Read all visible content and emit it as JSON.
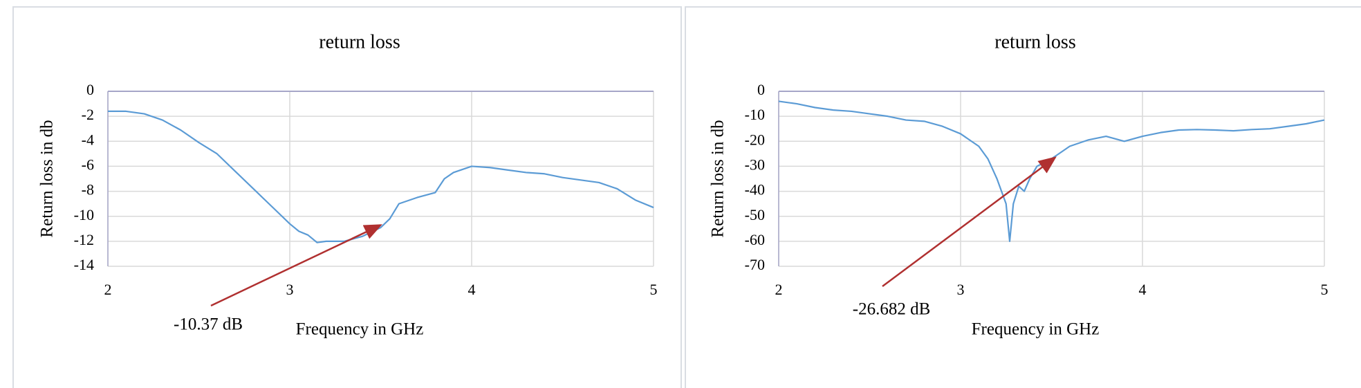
{
  "chart_data": [
    {
      "type": "line",
      "title": "return loss",
      "xlabel": "Frequency in GHz",
      "ylabel": "Return loss in db",
      "color": "#5b9bd5",
      "grid": true,
      "xlim": [
        2,
        5
      ],
      "xticks": [
        2,
        3,
        4,
        5
      ],
      "ylim": [
        -14,
        0
      ],
      "yticks": [
        0,
        -2,
        -4,
        -6,
        -8,
        -10,
        -12,
        -14
      ],
      "x": [
        2.0,
        2.1,
        2.2,
        2.3,
        2.4,
        2.5,
        2.6,
        2.7,
        2.8,
        2.9,
        3.0,
        3.05,
        3.1,
        3.15,
        3.2,
        3.3,
        3.4,
        3.5,
        3.55,
        3.6,
        3.7,
        3.8,
        3.85,
        3.9,
        4.0,
        4.1,
        4.2,
        4.3,
        4.4,
        4.5,
        4.6,
        4.7,
        4.8,
        4.9,
        5.0
      ],
      "values": [
        -1.6,
        -1.6,
        -1.8,
        -2.3,
        -3.1,
        -4.1,
        -5.0,
        -6.4,
        -7.8,
        -9.2,
        -10.6,
        -11.2,
        -11.5,
        -12.1,
        -12.0,
        -12.0,
        -11.6,
        -10.9,
        -10.2,
        -9.0,
        -8.5,
        -8.1,
        -7.0,
        -6.5,
        -6.0,
        -6.1,
        -6.3,
        -6.5,
        -6.6,
        -6.9,
        -7.1,
        -7.3,
        -7.8,
        -8.7,
        -9.3
      ],
      "annotations": [
        {
          "text": "-10.37 dB",
          "color": "#e02020",
          "arrow_color": "#b03030",
          "xy": [
            3.5,
            -10.7
          ]
        }
      ]
    },
    {
      "type": "line",
      "title": "return loss",
      "xlabel": "Frequency in GHz",
      "ylabel": "Return loss in db",
      "color": "#5b9bd5",
      "grid": true,
      "xlim": [
        2,
        5
      ],
      "xticks": [
        2,
        3,
        4,
        5
      ],
      "ylim": [
        -70,
        0
      ],
      "yticks": [
        0,
        -10,
        -20,
        -30,
        -40,
        -50,
        -60,
        -70
      ],
      "x": [
        2.0,
        2.1,
        2.2,
        2.3,
        2.4,
        2.5,
        2.6,
        2.7,
        2.8,
        2.9,
        3.0,
        3.1,
        3.15,
        3.2,
        3.25,
        3.27,
        3.29,
        3.32,
        3.35,
        3.38,
        3.42,
        3.5,
        3.6,
        3.7,
        3.8,
        3.9,
        4.0,
        4.1,
        4.2,
        4.3,
        4.4,
        4.5,
        4.6,
        4.7,
        4.8,
        4.9,
        5.0
      ],
      "values": [
        -4,
        -5,
        -6.5,
        -7.5,
        -8,
        -9,
        -10,
        -11.5,
        -12,
        -14,
        -17,
        -22,
        -27,
        -35,
        -45,
        -60,
        -45,
        -38,
        -40,
        -35,
        -30,
        -27,
        -22,
        -19.5,
        -18,
        -20,
        -18,
        -16.5,
        -15.5,
        -15.3,
        -15.5,
        -15.8,
        -15.3,
        -15,
        -14,
        -13,
        -11.5
      ],
      "annotations": [
        {
          "text": "-26.682 dB",
          "color": "#e02020",
          "arrow_color": "#b03030",
          "xy": [
            3.52,
            -26.5
          ]
        }
      ]
    }
  ]
}
